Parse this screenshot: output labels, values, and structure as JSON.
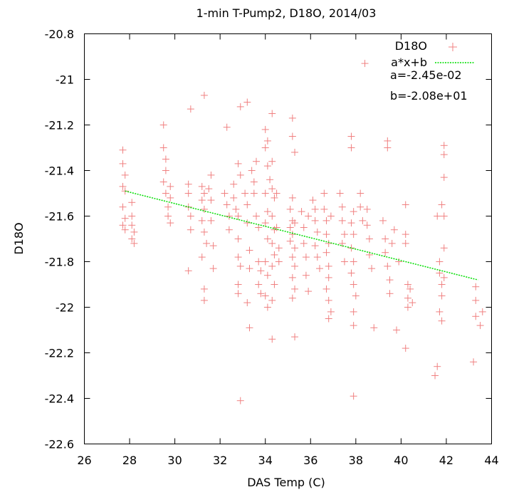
{
  "chart_data": {
    "type": "scatter",
    "title": "1-min T-Pump2, D18O, 2014/03",
    "xlabel": "DAS Temp (C)",
    "ylabel": "D18O",
    "xlim": [
      26,
      44
    ],
    "ylim": [
      -22.6,
      -20.8
    ],
    "x_ticks": [
      "26",
      "28",
      "30",
      "32",
      "34",
      "36",
      "38",
      "40",
      "42",
      "44"
    ],
    "y_ticks": [
      "-20.8",
      "-21",
      "-21.2",
      "-21.4",
      "-21.6",
      "-21.8",
      "-22",
      "-22.2",
      "-22.4",
      "-22.6"
    ],
    "grid": false,
    "legend_placement": "top-right",
    "colors": {
      "points": "#f08080",
      "fit": "#00dd00"
    },
    "series": [
      {
        "name": "D18O",
        "kind": "points",
        "points": [
          [
            27.7,
            -21.31
          ],
          [
            27.7,
            -21.37
          ],
          [
            27.8,
            -21.42
          ],
          [
            27.7,
            -21.47
          ],
          [
            27.8,
            -21.49
          ],
          [
            27.7,
            -21.56
          ],
          [
            27.8,
            -21.61
          ],
          [
            27.7,
            -21.64
          ],
          [
            27.8,
            -21.66
          ],
          [
            28.1,
            -21.54
          ],
          [
            28.1,
            -21.6
          ],
          [
            28.1,
            -21.64
          ],
          [
            28.2,
            -21.67
          ],
          [
            28.1,
            -21.7
          ],
          [
            28.2,
            -21.72
          ],
          [
            29.5,
            -21.2
          ],
          [
            29.5,
            -21.3
          ],
          [
            29.6,
            -21.35
          ],
          [
            29.6,
            -21.4
          ],
          [
            29.5,
            -21.45
          ],
          [
            29.6,
            -21.5
          ],
          [
            29.7,
            -21.56
          ],
          [
            29.7,
            -21.6
          ],
          [
            29.8,
            -21.63
          ],
          [
            29.8,
            -21.47
          ],
          [
            29.8,
            -21.52
          ],
          [
            30.7,
            -21.13
          ],
          [
            30.6,
            -21.46
          ],
          [
            30.6,
            -21.5
          ],
          [
            30.6,
            -21.56
          ],
          [
            30.7,
            -21.6
          ],
          [
            30.7,
            -21.66
          ],
          [
            30.6,
            -21.84
          ],
          [
            31.3,
            -21.07
          ],
          [
            31.2,
            -21.47
          ],
          [
            31.3,
            -21.5
          ],
          [
            31.2,
            -21.53
          ],
          [
            31.3,
            -21.57
          ],
          [
            31.2,
            -21.62
          ],
          [
            31.3,
            -21.67
          ],
          [
            31.4,
            -21.72
          ],
          [
            31.2,
            -21.78
          ],
          [
            31.3,
            -21.92
          ],
          [
            31.3,
            -21.97
          ],
          [
            31.5,
            -21.48
          ],
          [
            31.6,
            -21.42
          ],
          [
            31.6,
            -21.53
          ],
          [
            31.6,
            -21.62
          ],
          [
            31.7,
            -21.73
          ],
          [
            31.7,
            -21.83
          ],
          [
            32.3,
            -21.21
          ],
          [
            32.2,
            -21.5
          ],
          [
            32.3,
            -21.55
          ],
          [
            32.4,
            -21.6
          ],
          [
            32.4,
            -21.66
          ],
          [
            32.6,
            -21.46
          ],
          [
            32.6,
            -21.52
          ],
          [
            32.7,
            -21.57
          ],
          [
            32.8,
            -21.6
          ],
          [
            32.9,
            -21.12
          ],
          [
            32.8,
            -21.37
          ],
          [
            32.9,
            -21.42
          ],
          [
            32.8,
            -21.7
          ],
          [
            32.8,
            -21.78
          ],
          [
            32.9,
            -21.82
          ],
          [
            32.8,
            -21.9
          ],
          [
            32.8,
            -21.94
          ],
          [
            32.9,
            -22.41
          ],
          [
            33.2,
            -21.1
          ],
          [
            33.1,
            -21.5
          ],
          [
            33.2,
            -21.55
          ],
          [
            33.2,
            -21.63
          ],
          [
            33.3,
            -21.75
          ],
          [
            33.3,
            -21.83
          ],
          [
            33.2,
            -21.98
          ],
          [
            33.3,
            -22.09
          ],
          [
            33.4,
            -21.4
          ],
          [
            33.5,
            -21.45
          ],
          [
            33.5,
            -21.5
          ],
          [
            33.6,
            -21.36
          ],
          [
            33.6,
            -21.6
          ],
          [
            33.7,
            -21.65
          ],
          [
            33.7,
            -21.8
          ],
          [
            33.8,
            -21.84
          ],
          [
            33.7,
            -21.9
          ],
          [
            33.8,
            -21.94
          ],
          [
            34.0,
            -21.22
          ],
          [
            34.0,
            -21.3
          ],
          [
            34.1,
            -21.27
          ],
          [
            34.1,
            -21.38
          ],
          [
            34.2,
            -21.44
          ],
          [
            34.0,
            -21.5
          ],
          [
            34.1,
            -21.58
          ],
          [
            34.0,
            -21.63
          ],
          [
            34.1,
            -21.7
          ],
          [
            34.0,
            -21.8
          ],
          [
            34.1,
            -21.86
          ],
          [
            34.0,
            -21.95
          ],
          [
            34.1,
            -22.0
          ],
          [
            34.3,
            -21.15
          ],
          [
            34.3,
            -21.36
          ],
          [
            34.3,
            -21.48
          ],
          [
            34.4,
            -21.52
          ],
          [
            34.3,
            -21.6
          ],
          [
            34.4,
            -21.66
          ],
          [
            34.3,
            -21.72
          ],
          [
            34.4,
            -21.77
          ],
          [
            34.3,
            -21.82
          ],
          [
            34.4,
            -21.9
          ],
          [
            34.3,
            -21.97
          ],
          [
            34.3,
            -22.14
          ],
          [
            34.5,
            -21.5
          ],
          [
            34.5,
            -21.65
          ],
          [
            34.6,
            -21.74
          ],
          [
            34.6,
            -21.8
          ],
          [
            35.2,
            -21.17
          ],
          [
            35.2,
            -21.25
          ],
          [
            35.3,
            -21.32
          ],
          [
            35.2,
            -21.52
          ],
          [
            35.1,
            -21.57
          ],
          [
            35.2,
            -21.62
          ],
          [
            35.1,
            -21.65
          ],
          [
            35.2,
            -21.68
          ],
          [
            35.1,
            -21.71
          ],
          [
            35.3,
            -21.74
          ],
          [
            35.2,
            -21.78
          ],
          [
            35.3,
            -21.82
          ],
          [
            35.2,
            -21.87
          ],
          [
            35.3,
            -21.92
          ],
          [
            35.2,
            -21.96
          ],
          [
            35.3,
            -22.13
          ],
          [
            35.3,
            -21.63
          ],
          [
            35.6,
            -21.58
          ],
          [
            35.7,
            -21.65
          ],
          [
            35.7,
            -21.72
          ],
          [
            35.8,
            -21.78
          ],
          [
            35.8,
            -21.86
          ],
          [
            35.9,
            -21.93
          ],
          [
            35.9,
            -21.6
          ],
          [
            36.1,
            -21.53
          ],
          [
            36.2,
            -21.57
          ],
          [
            36.2,
            -21.62
          ],
          [
            36.3,
            -21.67
          ],
          [
            36.2,
            -21.73
          ],
          [
            36.3,
            -21.78
          ],
          [
            36.4,
            -21.83
          ],
          [
            36.6,
            -21.5
          ],
          [
            36.6,
            -21.57
          ],
          [
            36.7,
            -21.62
          ],
          [
            36.7,
            -21.68
          ],
          [
            36.8,
            -21.72
          ],
          [
            36.7,
            -21.76
          ],
          [
            36.8,
            -21.82
          ],
          [
            36.8,
            -21.87
          ],
          [
            36.7,
            -21.92
          ],
          [
            36.8,
            -21.97
          ],
          [
            36.9,
            -22.02
          ],
          [
            36.8,
            -22.05
          ],
          [
            36.9,
            -21.6
          ],
          [
            37.3,
            -21.5
          ],
          [
            37.4,
            -21.56
          ],
          [
            37.4,
            -21.62
          ],
          [
            37.5,
            -21.68
          ],
          [
            37.4,
            -21.72
          ],
          [
            37.5,
            -21.8
          ],
          [
            37.8,
            -21.25
          ],
          [
            37.8,
            -21.3
          ],
          [
            37.9,
            -21.58
          ],
          [
            37.8,
            -21.63
          ],
          [
            37.9,
            -21.68
          ],
          [
            37.8,
            -21.74
          ],
          [
            37.9,
            -21.8
          ],
          [
            37.8,
            -21.85
          ],
          [
            37.9,
            -21.9
          ],
          [
            38.0,
            -21.95
          ],
          [
            37.9,
            -22.02
          ],
          [
            37.9,
            -22.08
          ],
          [
            37.9,
            -22.39
          ],
          [
            38.2,
            -21.5
          ],
          [
            38.2,
            -21.56
          ],
          [
            38.3,
            -21.62
          ],
          [
            38.4,
            -20.93
          ],
          [
            38.5,
            -21.57
          ],
          [
            38.5,
            -21.64
          ],
          [
            38.6,
            -21.7
          ],
          [
            38.6,
            -21.77
          ],
          [
            38.7,
            -21.83
          ],
          [
            38.8,
            -22.09
          ],
          [
            39.2,
            -21.62
          ],
          [
            39.3,
            -21.7
          ],
          [
            39.3,
            -21.76
          ],
          [
            39.4,
            -21.27
          ],
          [
            39.4,
            -21.3
          ],
          [
            39.4,
            -21.82
          ],
          [
            39.5,
            -21.88
          ],
          [
            39.5,
            -21.94
          ],
          [
            39.6,
            -21.72
          ],
          [
            39.7,
            -21.66
          ],
          [
            39.8,
            -22.1
          ],
          [
            39.9,
            -21.8
          ],
          [
            40.2,
            -21.55
          ],
          [
            40.2,
            -21.68
          ],
          [
            40.2,
            -21.72
          ],
          [
            40.3,
            -21.9
          ],
          [
            40.3,
            -21.96
          ],
          [
            40.3,
            -22.0
          ],
          [
            40.2,
            -22.18
          ],
          [
            40.4,
            -21.92
          ],
          [
            40.5,
            -21.98
          ],
          [
            41.6,
            -21.6
          ],
          [
            41.7,
            -21.8
          ],
          [
            41.7,
            -21.85
          ],
          [
            41.8,
            -21.9
          ],
          [
            41.8,
            -21.95
          ],
          [
            41.7,
            -22.02
          ],
          [
            41.8,
            -22.06
          ],
          [
            41.6,
            -22.26
          ],
          [
            41.5,
            -22.3
          ],
          [
            41.9,
            -21.29
          ],
          [
            41.9,
            -21.33
          ],
          [
            41.9,
            -21.43
          ],
          [
            41.8,
            -21.55
          ],
          [
            41.9,
            -21.6
          ],
          [
            41.9,
            -21.74
          ],
          [
            41.9,
            -21.87
          ],
          [
            43.2,
            -22.24
          ],
          [
            43.3,
            -22.04
          ],
          [
            43.3,
            -21.97
          ],
          [
            43.3,
            -21.91
          ],
          [
            43.5,
            -22.08
          ],
          [
            43.6,
            -22.02
          ]
        ]
      },
      {
        "name": "a*x+b",
        "kind": "line",
        "x": [
          27.8,
          43.4
        ],
        "y": [
          -21.49,
          -21.88
        ]
      }
    ],
    "annotations": [
      "a=-2.45e-02",
      "b=-2.08e+01"
    ]
  }
}
